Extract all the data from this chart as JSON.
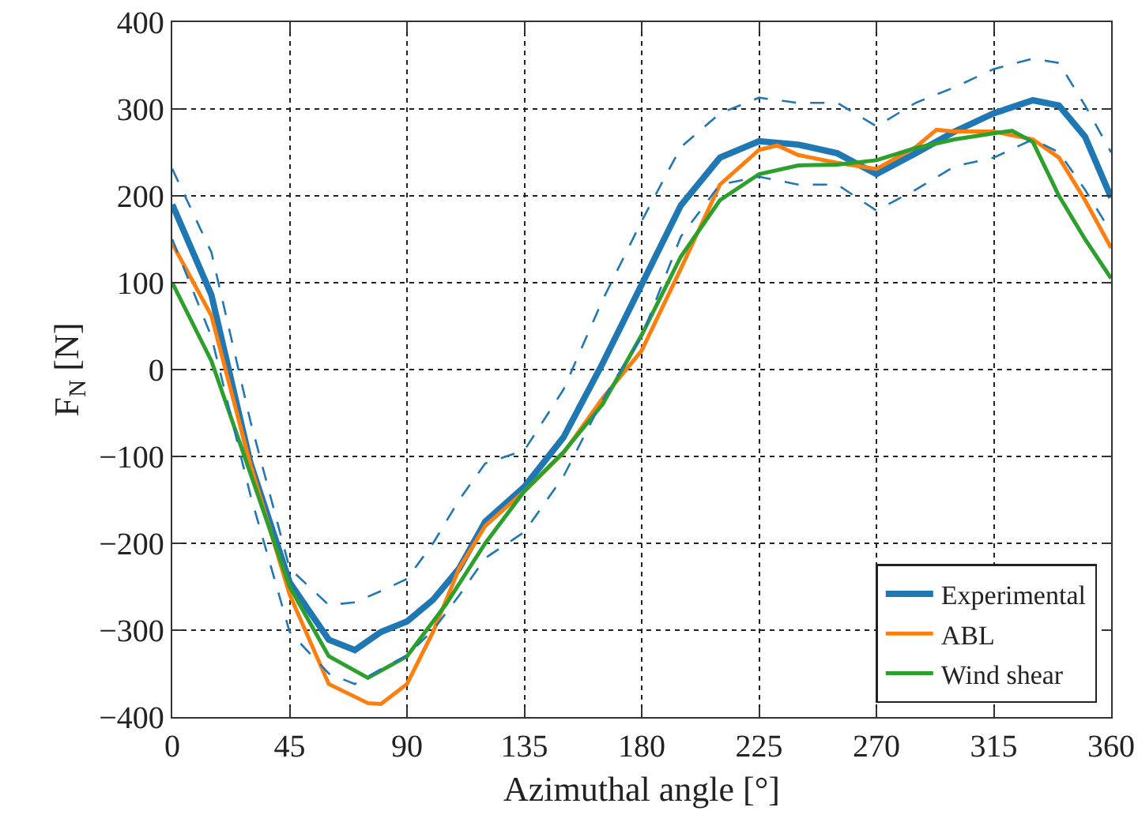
{
  "chart_data": {
    "type": "line",
    "xlabel": "Azimuthal angle [°]",
    "ylabel": "F$_{N}$ [N]",
    "xlim": [
      0,
      360
    ],
    "xticks": [
      0,
      45,
      90,
      135,
      180,
      225,
      270,
      315,
      360
    ],
    "ylim": [
      -400,
      400
    ],
    "yticks": [
      -400,
      -300,
      -200,
      -100,
      0,
      100,
      200,
      300,
      400
    ],
    "grid": true,
    "legend": "bottom right",
    "line_style": "solid",
    "marker": "none",
    "series": [
      {
        "name": "Experimental",
        "color": "#1f77b4",
        "x": [
          0,
          15,
          30,
          45,
          60,
          70,
          80,
          90,
          100,
          110,
          120,
          135,
          150,
          165,
          180,
          195,
          210,
          225,
          240,
          255,
          270,
          285,
          300,
          315,
          330,
          340,
          350,
          360
        ],
        "values": [
          190,
          86,
          -108,
          -245,
          -311,
          -323,
          -302,
          -290,
          -265,
          -229,
          -175,
          -135,
          -78,
          7,
          98,
          189,
          244,
          263,
          259,
          249,
          225,
          249,
          274,
          295,
          310,
          304,
          268,
          198
        ]
      },
      {
        "name": "ABL",
        "color": "#ff7f0e",
        "x": [
          0,
          15,
          30,
          45,
          60,
          75,
          80,
          90,
          100,
          110,
          120,
          135,
          150,
          165,
          180,
          195,
          210,
          225,
          232,
          240,
          255,
          270,
          285,
          293,
          300,
          315,
          330,
          340,
          350,
          360
        ],
        "values": [
          145,
          62,
          -110,
          -259,
          -362,
          -384,
          -385,
          -362,
          -302,
          -229,
          -180,
          -140,
          -96,
          -33,
          22,
          116,
          213,
          253,
          258,
          247,
          238,
          231,
          256,
          276,
          274,
          274,
          265,
          244,
          195,
          140
        ]
      },
      {
        "name": "Wind shear",
        "color": "#2ca02c",
        "x": [
          0,
          15,
          30,
          45,
          60,
          75,
          90,
          105,
          120,
          135,
          150,
          165,
          180,
          195,
          210,
          225,
          240,
          255,
          270,
          285,
          300,
          315,
          322,
          330,
          340,
          350,
          360
        ],
        "values": [
          100,
          10,
          -120,
          -250,
          -330,
          -355,
          -330,
          -270,
          -200,
          -140,
          -95,
          -40,
          40,
          130,
          195,
          225,
          235,
          236,
          241,
          255,
          265,
          272,
          275,
          262,
          200,
          150,
          105
        ]
      },
      {
        "color": "#1f77b4",
        "line_style": "dashed",
        "x": [
          0,
          15,
          30,
          45,
          60,
          70,
          80,
          90,
          100,
          110,
          120,
          135,
          150,
          165,
          180,
          195,
          210,
          225,
          240,
          255,
          270,
          285,
          300,
          315,
          330,
          340,
          350,
          360
        ],
        "values": [
          231,
          135,
          -60,
          -229,
          -271,
          -268,
          -255,
          -241,
          -200,
          -150,
          -108,
          -93,
          -23,
          80,
          171,
          256,
          295,
          313,
          307,
          307,
          280,
          307,
          325,
          346,
          358,
          353,
          304,
          250
        ]
      },
      {
        "color": "#1f77b4",
        "line_style": "dashed",
        "x": [
          0,
          15,
          30,
          45,
          60,
          70,
          80,
          90,
          100,
          110,
          120,
          135,
          150,
          165,
          180,
          195,
          210,
          225,
          240,
          255,
          270,
          285,
          300,
          315,
          330,
          340,
          350,
          360
        ],
        "values": [
          150,
          38,
          -145,
          -302,
          -350,
          -362,
          -345,
          -329,
          -300,
          -260,
          -217,
          -187,
          -123,
          -35,
          38,
          153,
          213,
          222,
          213,
          213,
          183,
          207,
          234,
          244,
          265,
          250,
          207,
          158
        ]
      }
    ]
  }
}
